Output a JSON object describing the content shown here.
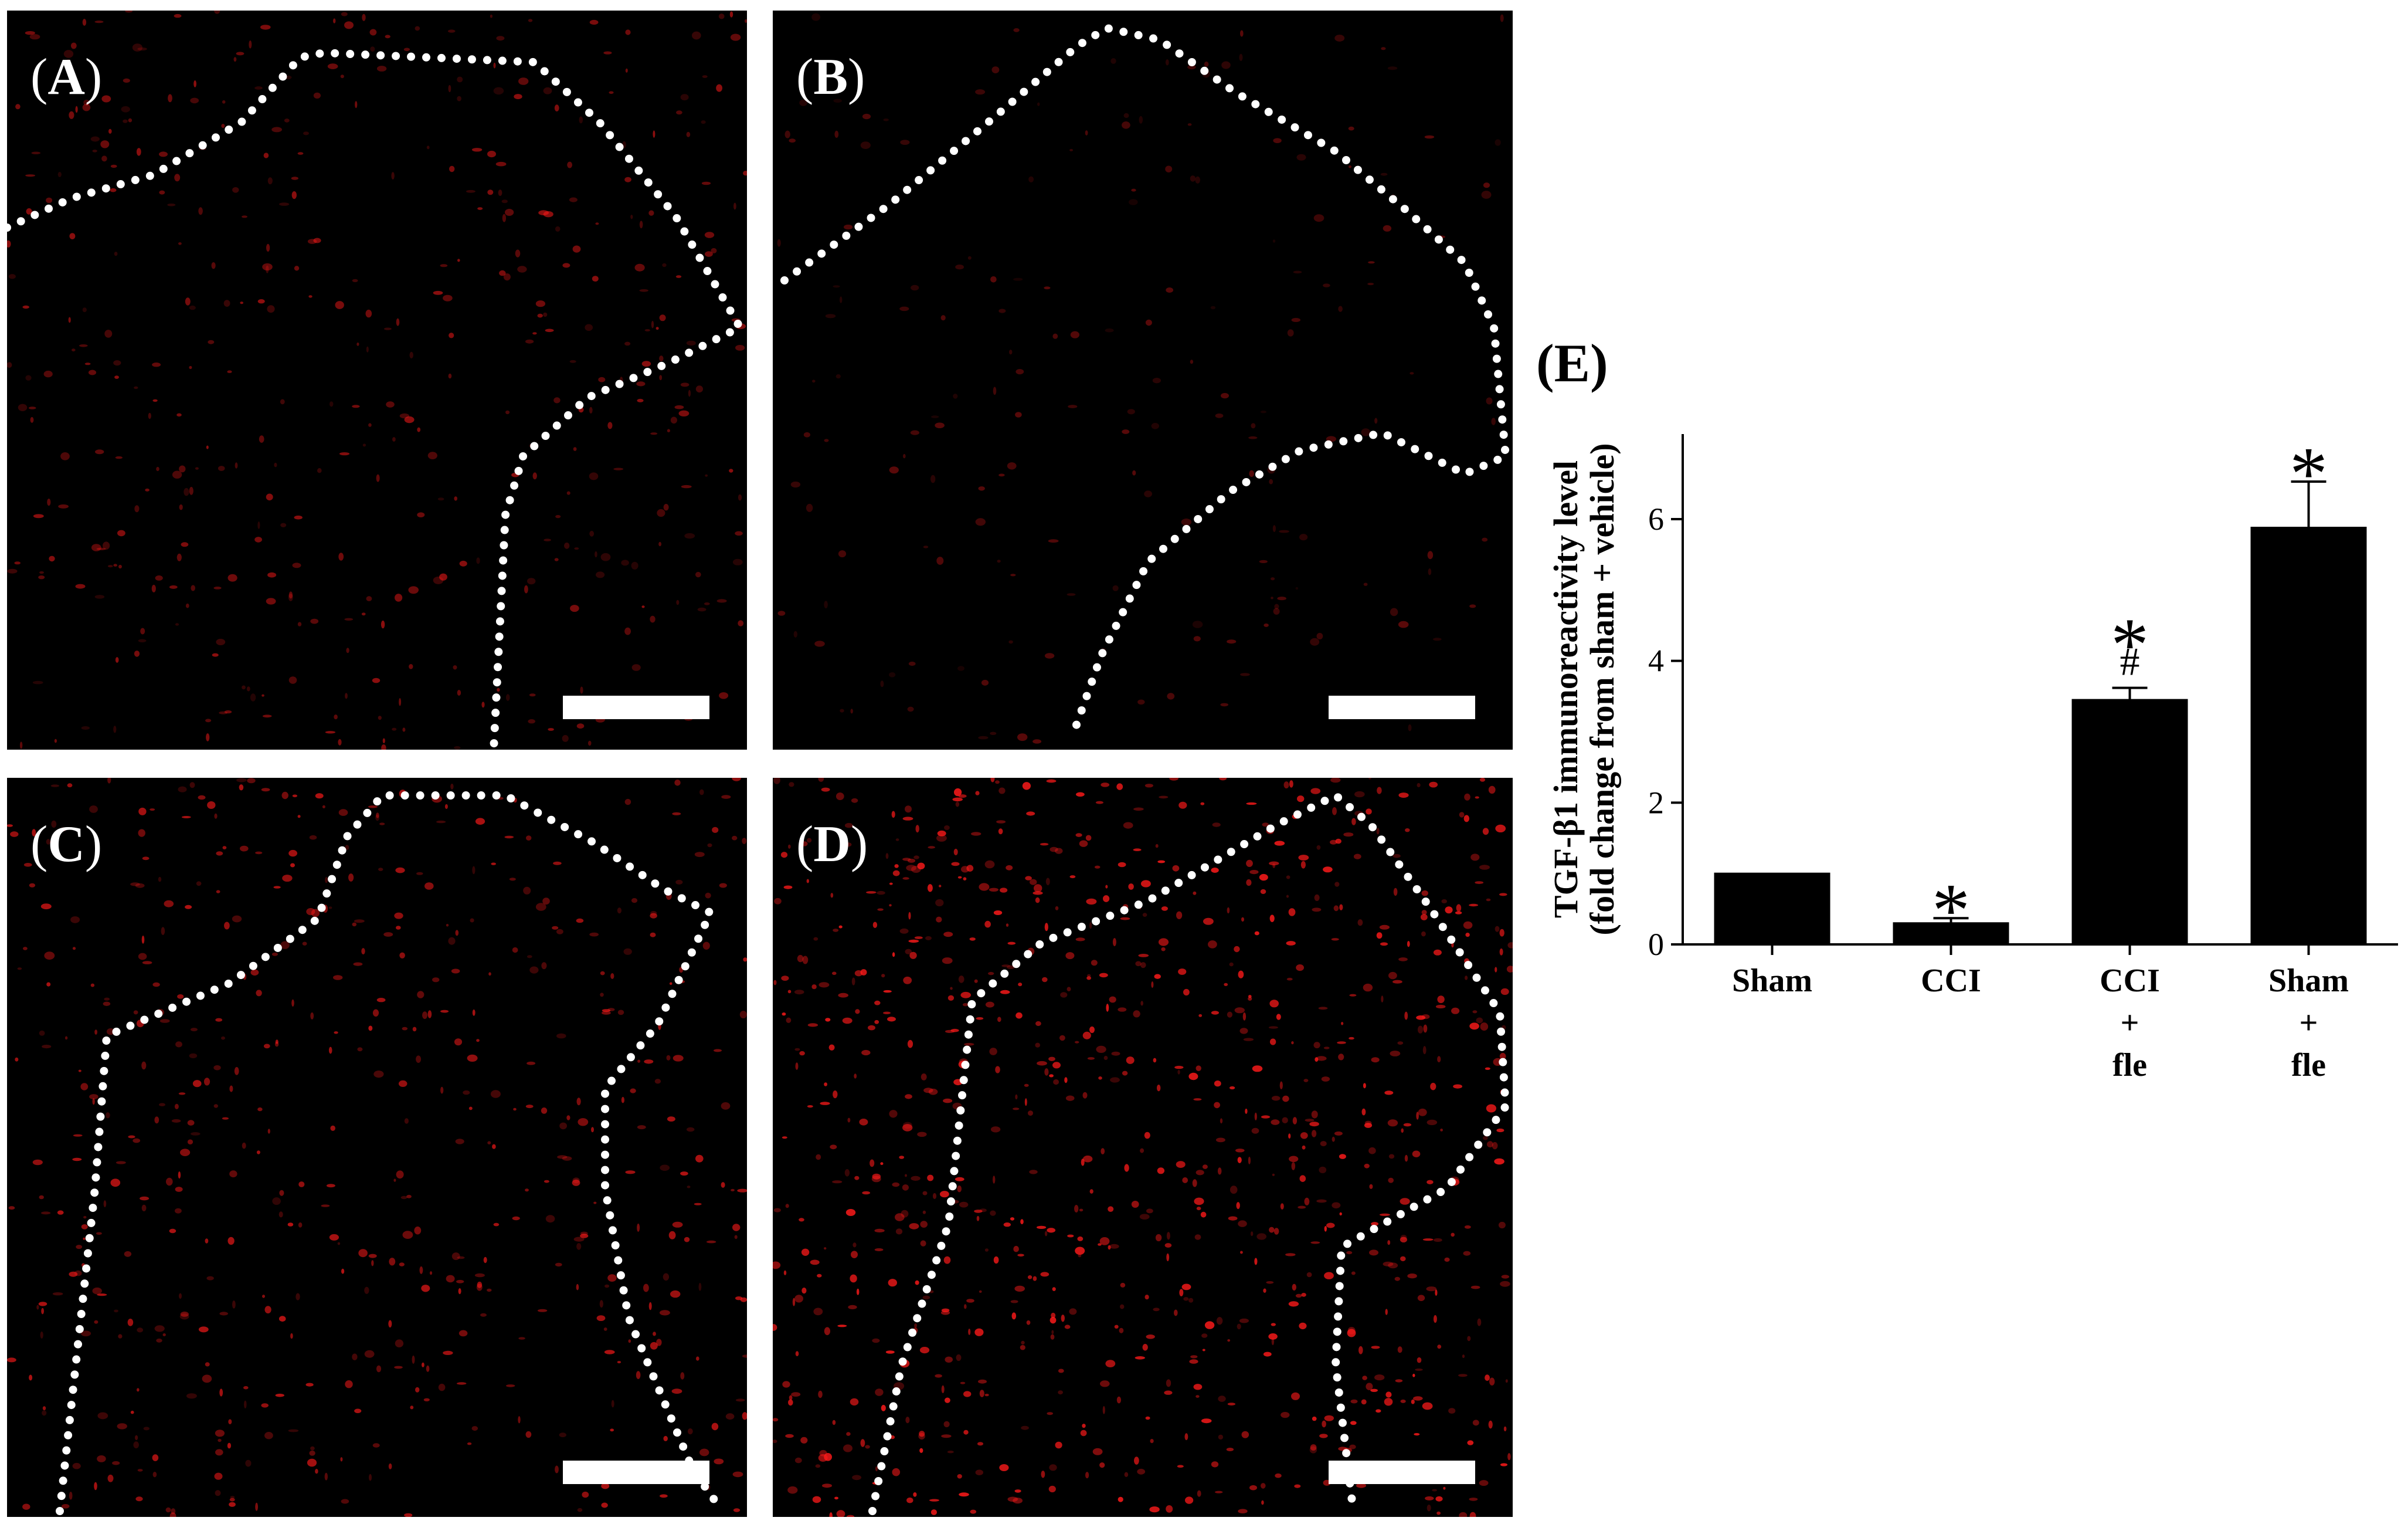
{
  "panels": [
    {
      "id": "A",
      "label": "A",
      "scale_bar": true
    },
    {
      "id": "B",
      "label": "B",
      "scale_bar": true
    },
    {
      "id": "C",
      "label": "C",
      "scale_bar": true
    },
    {
      "id": "D",
      "label": "D",
      "scale_bar": true
    }
  ],
  "colors": {
    "stain": "#ff1a1a",
    "background": "#000000",
    "outline": "#ffffff",
    "bar_fill": "#000000"
  },
  "chart_data": {
    "type": "bar",
    "panel_label": "E",
    "categories": [
      [
        "Sham"
      ],
      [
        "CCI"
      ],
      [
        "CCI",
        "+",
        "fle"
      ],
      [
        "Sham",
        "+",
        "fle"
      ]
    ],
    "values": [
      1.0,
      0.3,
      3.45,
      5.88
    ],
    "errors": [
      0.0,
      0.07,
      0.17,
      0.65
    ],
    "annotations": [
      [],
      [
        "*"
      ],
      [
        "*",
        "#"
      ],
      [
        "*"
      ]
    ],
    "ylabel": "TGF-β1 immunoreactivity level",
    "ylabel_sub": "(fold change from sham + vehicle)",
    "ylim": [
      0,
      7.2
    ],
    "yticks": [
      0,
      2,
      4,
      6
    ],
    "ytick_labels": [
      "0",
      "2",
      "4",
      "6"
    ],
    "grid": false,
    "legend": "none"
  }
}
